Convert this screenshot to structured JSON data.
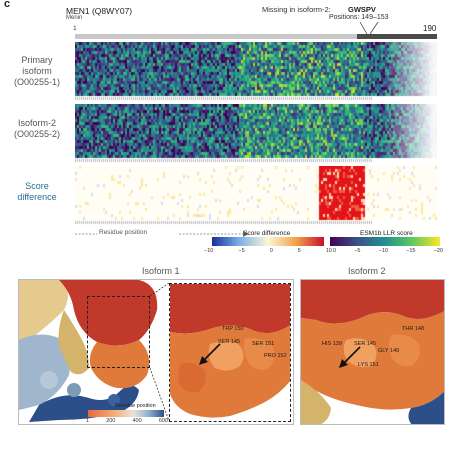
{
  "panel": {
    "letter": "c"
  },
  "protein": {
    "name": "MEN1 (Q8WY07)",
    "subtitle": "Menin"
  },
  "missing": {
    "label": "Missing in isoform-2:",
    "seq": "GWSPV",
    "positions": "Positions: 149–153"
  },
  "axis": {
    "start": "1",
    "end": "190",
    "residue_position": "Residue position"
  },
  "rows": {
    "primary": [
      "Primary",
      "isoform",
      "(O00255-1)"
    ],
    "iso2": [
      "Isoform-2",
      "(O00255-2)"
    ],
    "diff": [
      "Score",
      "difference"
    ]
  },
  "colorbars": {
    "score_diff": {
      "title": "Score difference",
      "ticks": [
        "−10",
        "−5",
        "0",
        "5",
        "10"
      ]
    },
    "llr": {
      "title": "ESM1b LLR score",
      "ticks": [
        "0",
        "−5",
        "−10",
        "−15",
        "−20"
      ]
    }
  },
  "structure": {
    "iso1_title": "Isoform 1",
    "iso2_title": "Isoform 2",
    "residue_bar_title": "Residue position",
    "residue_bar_ticks": [
      "1",
      "200",
      "400",
      "600"
    ],
    "iso1_labels": [
      "TRP 150",
      "SER 145",
      "SER 151",
      "PRO 152"
    ],
    "iso2_labels": [
      "THR 148",
      "HIS 139",
      "SER 145",
      "GLY 149",
      "LYS 151"
    ]
  },
  "colors": {
    "accent_blue": "#2a6f97",
    "mol_red": "#c0392b",
    "mol_orange": "#e07a3a",
    "mol_blue": "#2c4f8a"
  }
}
